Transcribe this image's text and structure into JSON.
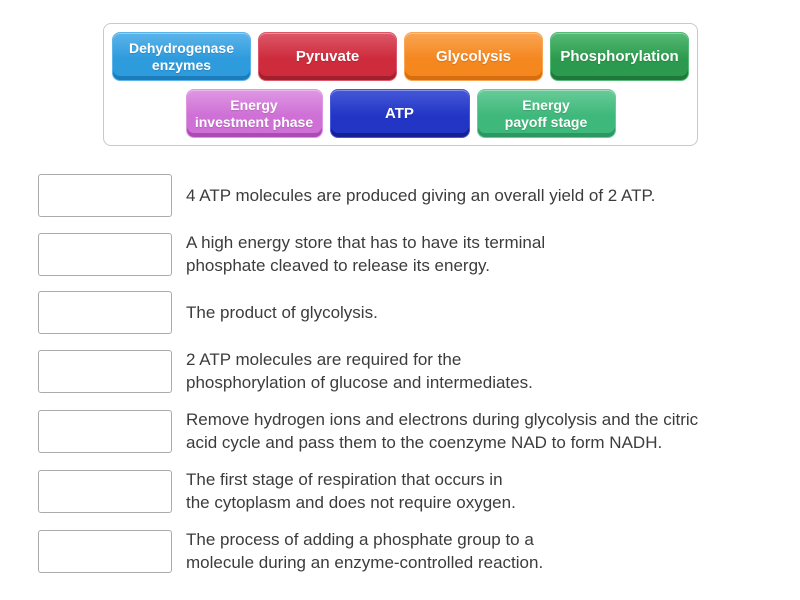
{
  "colors": {
    "clue_text": "#3c3c3c",
    "box_border": "#ababab",
    "bank_border": "#c9c9c9",
    "page_bg": "#ffffff"
  },
  "word_bank": {
    "tiles": [
      {
        "label": "Dehydrogenase\nenzymes",
        "color_base": "#2e9bdd",
        "color_light": "#5bb5ea",
        "color_dark": "#1b7cbb"
      },
      {
        "label": "Pyruvate",
        "color_base": "#ce2b3c",
        "color_light": "#dc5868",
        "color_dark": "#a21f2d"
      },
      {
        "label": "Glycolysis",
        "color_base": "#f5871f",
        "color_light": "#f9a553",
        "color_dark": "#d66e10"
      },
      {
        "label": "Phosphorylation",
        "color_base": "#2c9a4e",
        "color_light": "#55ba75",
        "color_dark": "#1d7839"
      },
      {
        "label": "Energy\ninvestment phase",
        "color_base": "#ce70d5",
        "color_light": "#df97e4",
        "color_dark": "#ac4bb5"
      },
      {
        "label": "ATP",
        "color_base": "#2235c5",
        "color_light": "#4558d8",
        "color_dark": "#141f96"
      },
      {
        "label": "Energy\npayoff stage",
        "color_base": "#3fb87b",
        "color_light": "#68cb98",
        "color_dark": "#2b9861"
      }
    ]
  },
  "match_list": {
    "items": [
      {
        "clue": "4 ATP molecules are produced giving an overall yield of 2 ATP."
      },
      {
        "clue": "A high energy store that has to have its terminal\nphosphate cleaved to release its energy."
      },
      {
        "clue": "The product of glycolysis."
      },
      {
        "clue": "2 ATP molecules are required for the\nphosphorylation of glucose and intermediates."
      },
      {
        "clue": "Remove hydrogen ions and electrons during glycolysis and the citric\nacid cycle and pass them to the coenzyme NAD to form NADH."
      },
      {
        "clue": "The first stage of respiration that occurs in\nthe cytoplasm and does not require oxygen."
      },
      {
        "clue": "The process of adding a phosphate group to a\nmolecule during an enzyme-controlled reaction."
      }
    ]
  }
}
